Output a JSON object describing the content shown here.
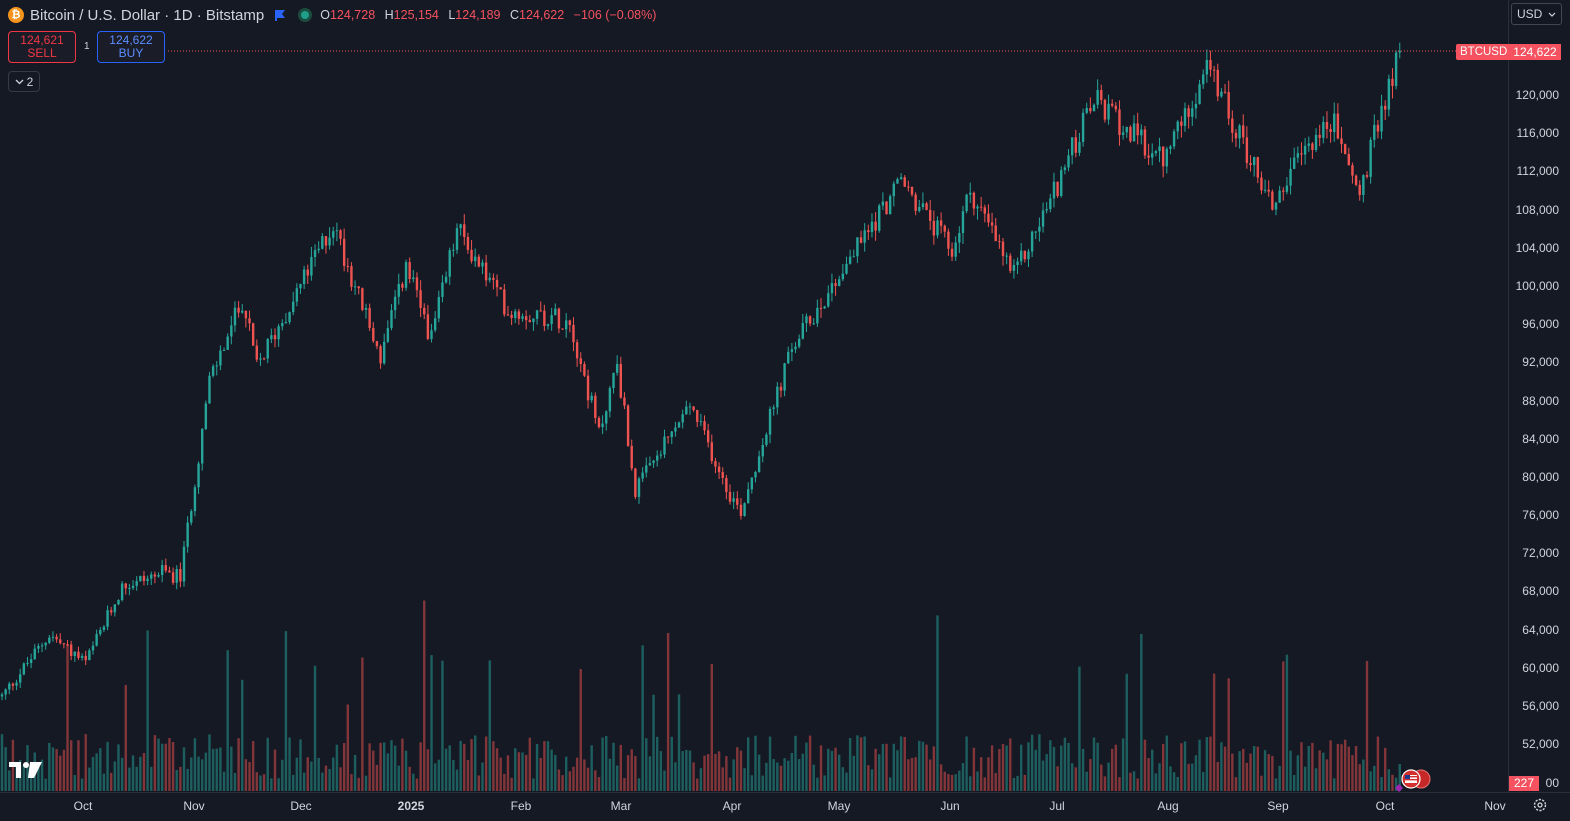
{
  "header": {
    "coin_glyph": "₿",
    "title": "Bitcoin / U.S. Dollar · 1D · Bitstamp",
    "ohlc": [
      {
        "key": "O",
        "value": "124,728"
      },
      {
        "key": "H",
        "value": "125,154"
      },
      {
        "key": "L",
        "value": "124,189"
      },
      {
        "key": "C",
        "value": "124,622"
      }
    ],
    "change": "−106 (−0.08%)"
  },
  "trade": {
    "sell_price": "124,621",
    "sell_label": "SELL",
    "spread": "1",
    "buy_price": "124,622",
    "buy_label": "BUY"
  },
  "indicators_toggle": {
    "count": "2"
  },
  "currency_selector": {
    "value": "USD"
  },
  "price_axis": {
    "ticks": [
      "120,000",
      "116,000",
      "112,000",
      "108,000",
      "104,000",
      "100,000",
      "96,000",
      "92,000",
      "88,000",
      "84,000",
      "80,000",
      "76,000",
      "72,000",
      "68,000",
      "64,000",
      "60,000",
      "56,000",
      "52,000"
    ],
    "partial_bottom_tick": "00",
    "symbol_tag": "BTCUSD",
    "last_price_tag": "124,622",
    "volume_tag": "227"
  },
  "time_axis": {
    "labels": [
      {
        "text": "Oct",
        "bold": false
      },
      {
        "text": "Nov",
        "bold": false
      },
      {
        "text": "Dec",
        "bold": false
      },
      {
        "text": "2025",
        "bold": true
      },
      {
        "text": "Feb",
        "bold": false
      },
      {
        "text": "Mar",
        "bold": false
      },
      {
        "text": "Apr",
        "bold": false
      },
      {
        "text": "May",
        "bold": false
      },
      {
        "text": "Jun",
        "bold": false
      },
      {
        "text": "Jul",
        "bold": false
      },
      {
        "text": "Aug",
        "bold": false
      },
      {
        "text": "Sep",
        "bold": false
      },
      {
        "text": "Oct",
        "bold": false
      },
      {
        "text": "Nov",
        "bold": false
      }
    ]
  },
  "colors": {
    "background": "#151924",
    "up": "#26a69a",
    "down": "#ef5350",
    "price_line": "#f7525f"
  },
  "chart_data": {
    "type": "candlestick",
    "interval": "1D",
    "symbol": "BTCUSD",
    "y_range": [
      48000,
      126000
    ],
    "last_price": 124622,
    "close_anchors": [
      {
        "date": "2024-09-17",
        "close": 57000
      },
      {
        "date": "2024-09-30",
        "close": 63500
      },
      {
        "date": "2024-10-10",
        "close": 60500
      },
      {
        "date": "2024-10-20",
        "close": 68500
      },
      {
        "date": "2024-10-31",
        "close": 70000
      },
      {
        "date": "2024-11-05",
        "close": 69500
      },
      {
        "date": "2024-11-13",
        "close": 90000
      },
      {
        "date": "2024-11-22",
        "close": 98500
      },
      {
        "date": "2024-11-26",
        "close": 91500
      },
      {
        "date": "2024-12-05",
        "close": 98000
      },
      {
        "date": "2024-12-17",
        "close": 106500
      },
      {
        "date": "2024-12-30",
        "close": 92500
      },
      {
        "date": "2025-01-06",
        "close": 102000
      },
      {
        "date": "2025-01-13",
        "close": 94500
      },
      {
        "date": "2025-01-20",
        "close": 106000
      },
      {
        "date": "2025-02-03",
        "close": 97500
      },
      {
        "date": "2025-02-20",
        "close": 96500
      },
      {
        "date": "2025-02-28",
        "close": 84500
      },
      {
        "date": "2025-03-05",
        "close": 92000
      },
      {
        "date": "2025-03-10",
        "close": 78500
      },
      {
        "date": "2025-03-25",
        "close": 87500
      },
      {
        "date": "2025-04-06",
        "close": 77500
      },
      {
        "date": "2025-04-08",
        "close": 76500
      },
      {
        "date": "2025-04-22",
        "close": 93500
      },
      {
        "date": "2025-05-08",
        "close": 103000
      },
      {
        "date": "2025-05-22",
        "close": 111000
      },
      {
        "date": "2025-06-05",
        "close": 103500
      },
      {
        "date": "2025-06-10",
        "close": 110000
      },
      {
        "date": "2025-06-22",
        "close": 101000
      },
      {
        "date": "2025-07-02",
        "close": 109000
      },
      {
        "date": "2025-07-14",
        "close": 119500
      },
      {
        "date": "2025-08-02",
        "close": 113000
      },
      {
        "date": "2025-08-14",
        "close": 123000
      },
      {
        "date": "2025-09-01",
        "close": 108500
      },
      {
        "date": "2025-09-12",
        "close": 115500
      },
      {
        "date": "2025-09-18",
        "close": 117000
      },
      {
        "date": "2025-09-25",
        "close": 109500
      },
      {
        "date": "2025-10-01",
        "close": 118500
      },
      {
        "date": "2025-10-06",
        "close": 124622
      }
    ]
  }
}
